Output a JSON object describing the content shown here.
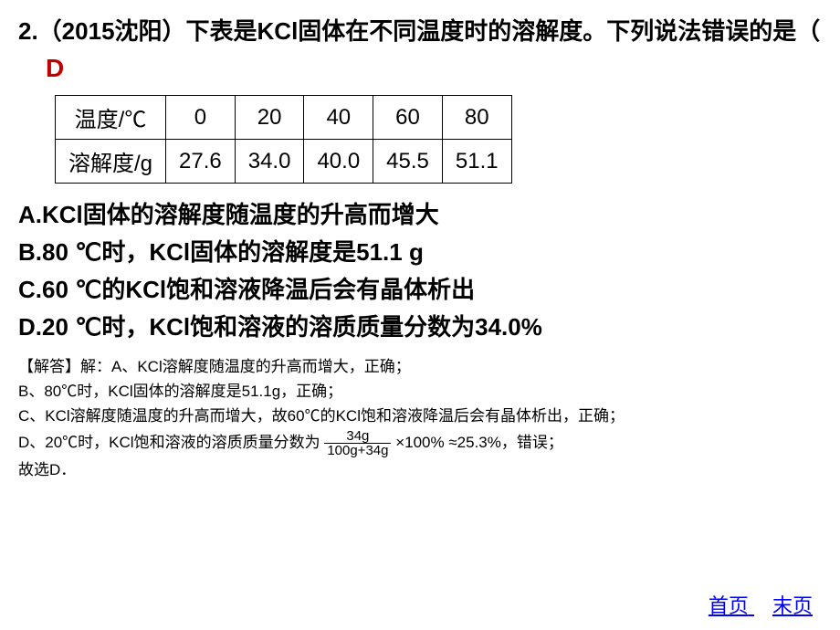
{
  "question": {
    "number_source": "2.（2015沈阳）",
    "stem_part1": "下表是KCl固体在不同温度时的溶解度。下列说法错误的是（",
    "stem_part2": "）",
    "answer_letter": "D"
  },
  "table": {
    "row1_header": "温度/℃",
    "row1_values": [
      "0",
      "20",
      "40",
      "60",
      "80"
    ],
    "row2_header": "溶解度/g",
    "row2_values": [
      "27.6",
      "34.0",
      "40.0",
      "45.5",
      "51.1"
    ],
    "border_color": "#000000",
    "cell_fontsize": 24
  },
  "options": {
    "A": "A.KCl固体的溶解度随温度的升高而增大",
    "B": "B.80 ℃时，KCl固体的溶解度是51.1 g",
    "C": "C.60 ℃的KCl饱和溶液降温后会有晶体析出",
    "D": "D.20 ℃时，KCl饱和溶液的溶质质量分数为34.0%"
  },
  "explanation": {
    "head": "【解答】解：A、KCl溶解度随温度的升高而增大，正确；",
    "lineB": "B、80℃时，KCl固体的溶解度是51.1g，正确；",
    "lineC": "C、KCl溶解度随温度的升高而增大，故60℃的KCl饱和溶液降温后会有晶体析出，正确；",
    "lineD_pre": "D、20℃时，KCl饱和溶液的溶质质量分数为 ",
    "fraction_num": "34g",
    "fraction_den": "100g+34g",
    "lineD_post": "×100% ≈25.3%，错误；",
    "conclusion": "故选D．"
  },
  "nav": {
    "first": "首页",
    "last": "末页"
  },
  "colors": {
    "answer_color": "#c00000",
    "link_color": "#0000ff",
    "text_color": "#000000",
    "background": "#ffffff"
  }
}
